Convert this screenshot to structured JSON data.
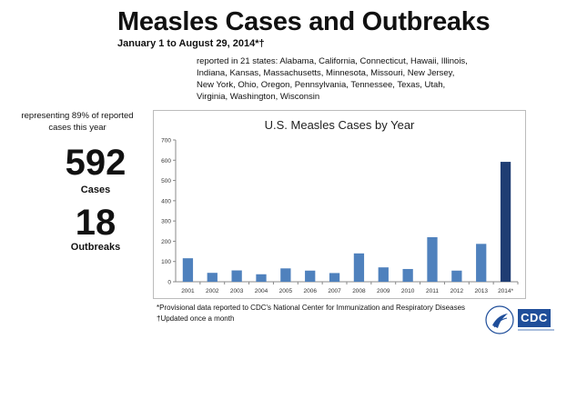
{
  "header": {
    "title": "Measles Cases and Outbreaks",
    "subtitle": "January 1 to August 29, 2014*†"
  },
  "states_note": "reported in 21 states: Alabama, California, Connecticut, Hawaii, Illinois, Indiana, Kansas, Massachusetts, Minnesota, Missouri, New Jersey, New York, Ohio, Oregon, Pennsylvania, Tennessee, Texas, Utah, Virginia, Washington, Wisconsin",
  "summary": {
    "representing": "representing 89% of reported cases this year",
    "cases_value": "592",
    "cases_label": "Cases",
    "outbreaks_value": "18",
    "outbreaks_label": "Outbreaks"
  },
  "footnotes": {
    "provisional": "*Provisional data reported to CDC's National Center for Immunization and Respiratory Diseases",
    "updated": "†Updated once a month"
  },
  "logo": {
    "text": "CDC"
  },
  "colors": {
    "bar": "#4f81bd",
    "bar_highlight": "#1f3d73",
    "axis": "#888888"
  },
  "chart_data": {
    "type": "bar",
    "title": "U.S. Measles Cases by Year",
    "categories": [
      "2001",
      "2002",
      "2003",
      "2004",
      "2005",
      "2006",
      "2007",
      "2008",
      "2009",
      "2010",
      "2011",
      "2012",
      "2013",
      "2014*"
    ],
    "values": [
      116,
      44,
      56,
      37,
      66,
      55,
      43,
      140,
      71,
      63,
      220,
      55,
      187,
      592
    ],
    "highlight_index": 13,
    "ylim": [
      0,
      700
    ],
    "yticks": [
      0,
      100,
      200,
      300,
      400,
      500,
      600,
      700
    ],
    "xlabel": "",
    "ylabel": "",
    "grid": false
  }
}
